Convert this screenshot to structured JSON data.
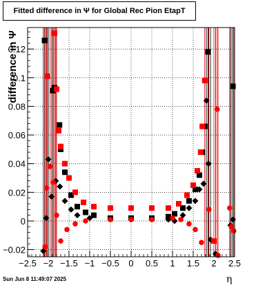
{
  "title": "Fitted difference in  Ψ  for Global Rec Pion EtapT",
  "ylabel": "difference in  Ψ",
  "xlabel": "η",
  "timestamp": "Sun Jun  8 11:49:07 2025",
  "chart_data": {
    "type": "scatter",
    "title": "Fitted difference in  Ψ  for Global Rec Pion EtapT",
    "xlabel": "η",
    "ylabel": "difference in  Ψ",
    "xlim": [
      -2.5,
      2.5
    ],
    "ylim": [
      -0.025,
      0.135
    ],
    "grid": true,
    "xticks": [
      -2.5,
      -2,
      -1.5,
      -1,
      -0.5,
      0,
      0.5,
      1,
      1.5,
      2,
      2.5
    ],
    "xtick_labels": [
      "−2.5",
      "−2",
      "−1.5",
      "−1",
      "−0.5",
      "0",
      "0.5",
      "1",
      "1.5",
      "2",
      "2.5"
    ],
    "yticks": [
      -0.02,
      0,
      0.02,
      0.04,
      0.06,
      0.08,
      0.1,
      0.12
    ],
    "ytick_labels": [
      "−0.02",
      "0",
      "0.02",
      "0.04",
      "0.06",
      "0.08",
      "0.1",
      "0.12"
    ],
    "series": [
      {
        "marker": "square",
        "color": "#000000",
        "points": [
          [
            -2.09,
            0.126
          ],
          [
            -1.89,
            0.091
          ],
          [
            -1.85,
            0.093
          ],
          [
            -1.73,
            0.067
          ],
          [
            -1.7,
            0.05
          ],
          [
            -1.6,
            0.034
          ],
          [
            -1.45,
            0.018
          ],
          [
            -1.3,
            0.01
          ],
          [
            -1.1,
            0.006
          ],
          [
            -0.9,
            0.004
          ],
          [
            -0.5,
            0.002
          ],
          [
            0,
            0.002
          ],
          [
            0.5,
            0.002
          ],
          [
            0.9,
            0.003
          ],
          [
            1.05,
            0.005
          ],
          [
            1.25,
            0.009
          ],
          [
            1.4,
            0.014
          ],
          [
            1.55,
            0.022
          ],
          [
            1.65,
            0.032
          ],
          [
            1.72,
            0.048
          ],
          [
            1.78,
            0.066
          ],
          [
            1.86,
            0.118
          ],
          [
            2.46,
            0.094
          ]
        ]
      },
      {
        "marker": "diamond",
        "color": "#000000",
        "points": [
          [
            -2.12,
            -0.021
          ],
          [
            -2.05,
            0.002
          ],
          [
            -2.0,
            0.043
          ],
          [
            -1.92,
            0.017
          ],
          [
            -1.82,
            0.028
          ],
          [
            -1.72,
            0.024
          ],
          [
            -1.6,
            0.014
          ],
          [
            -1.45,
            0.008
          ],
          [
            -1.3,
            0.004
          ],
          [
            -1.0,
            0.002
          ],
          [
            -0.5,
            0.001
          ],
          [
            0,
            0.001
          ],
          [
            0.5,
            0.001
          ],
          [
            0.9,
            0.001
          ],
          [
            1.05,
            0.0
          ],
          [
            1.25,
            0.004
          ],
          [
            1.4,
            0.009
          ],
          [
            1.55,
            0.014
          ],
          [
            1.65,
            0.022
          ],
          [
            1.75,
            0.026
          ],
          [
            1.82,
            0.084
          ],
          [
            1.87,
            0.04
          ],
          [
            1.92,
            -0.013
          ],
          [
            2.04,
            -0.023
          ],
          [
            2.4,
            -0.003
          ],
          [
            2.46,
            0.001
          ]
        ]
      },
      {
        "marker": "square",
        "color": "#ff0000",
        "points": [
          [
            -2.02,
            0.101
          ],
          [
            -1.85,
            0.131
          ],
          [
            -1.8,
            0.092
          ],
          [
            -1.75,
            0.063
          ],
          [
            -1.7,
            0.052
          ],
          [
            -1.6,
            0.04
          ],
          [
            -1.5,
            0.03
          ],
          [
            -1.35,
            0.02
          ],
          [
            -1.15,
            0.013
          ],
          [
            -0.9,
            0.01
          ],
          [
            -0.5,
            0.009
          ],
          [
            0,
            0.009
          ],
          [
            0.5,
            0.009
          ],
          [
            0.9,
            0.009
          ],
          [
            1.15,
            0.012
          ],
          [
            1.35,
            0.018
          ],
          [
            1.5,
            0.025
          ],
          [
            1.6,
            0.035
          ],
          [
            1.68,
            0.048
          ],
          [
            1.72,
            0.066
          ],
          [
            1.78,
            0.098
          ],
          [
            2.0,
            -0.014
          ]
        ]
      },
      {
        "marker": "circle",
        "color": "#ff0000",
        "points": [
          [
            -2.08,
            -0.018
          ],
          [
            -2.04,
            0.023
          ],
          [
            -1.96,
            0.038
          ],
          [
            -1.88,
            0.027
          ],
          [
            -1.8,
            0.004
          ],
          [
            -1.7,
            -0.014
          ],
          [
            -1.55,
            -0.006
          ],
          [
            -1.35,
            -0.002
          ],
          [
            -1.1,
            0.0
          ],
          [
            -0.5,
            0.001
          ],
          [
            0,
            0.001
          ],
          [
            0.5,
            0.001
          ],
          [
            1.0,
            0.002
          ],
          [
            1.2,
            0.001
          ],
          [
            1.4,
            -0.002
          ],
          [
            1.55,
            -0.006
          ],
          [
            1.7,
            -0.015
          ],
          [
            1.88,
            0.008
          ],
          [
            2.08,
            0.078
          ],
          [
            2.1,
            -0.024
          ],
          [
            2.38,
            0.009
          ],
          [
            2.42,
            -0.004
          ],
          [
            2.48,
            -0.007
          ]
        ]
      }
    ]
  }
}
